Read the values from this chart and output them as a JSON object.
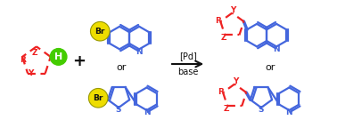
{
  "fig_width": 3.78,
  "fig_height": 1.44,
  "dpi": 100,
  "bg_color": "#ffffff",
  "blue": "#4466dd",
  "red": "#ee2222",
  "green": "#44cc00",
  "yellow": "#eedd00",
  "yellow_stroke": "#999900",
  "black": "#111111",
  "arrow_label_top": "[Pd]",
  "arrow_label_bot": "base",
  "plus_sign": "+",
  "or_text": "or",
  "h_label": "H",
  "br_label": "Br",
  "r_label": "R",
  "y_label": "Y",
  "z_label": "Z",
  "n_label": "N",
  "s_label": "S"
}
